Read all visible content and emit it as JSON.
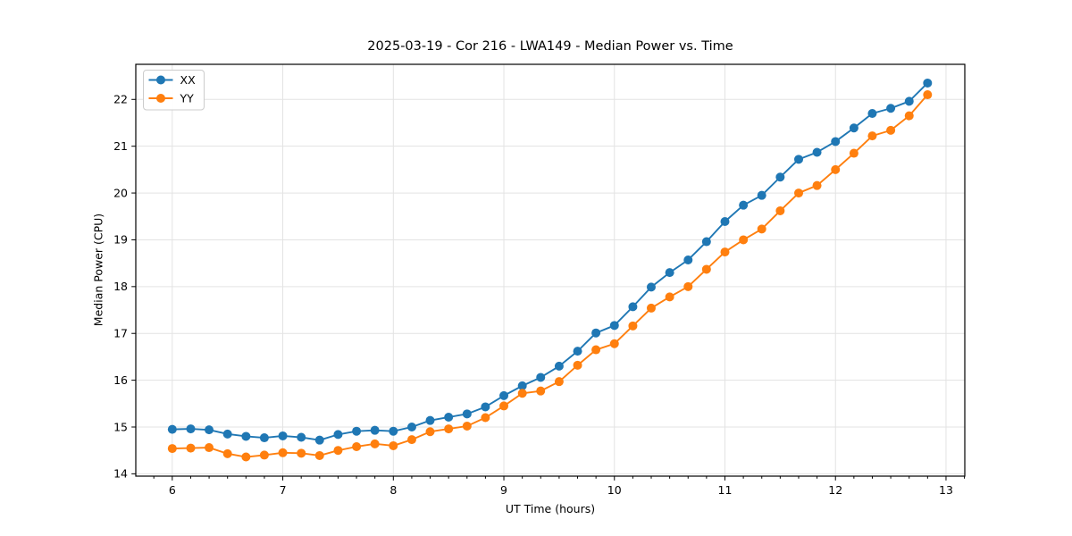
{
  "chart_data": {
    "type": "line",
    "title": "2025-03-19 - Cor 216 - LWA149 - Median Power vs. Time",
    "xlabel": "UT Time (hours)",
    "ylabel": "Median Power (CPU)",
    "xlim": [
      5.67,
      13.17
    ],
    "ylim": [
      13.95,
      22.75
    ],
    "x_ticks": [
      6,
      7,
      8,
      9,
      10,
      11,
      12,
      13
    ],
    "y_ticks": [
      14,
      15,
      16,
      17,
      18,
      19,
      20,
      21,
      22
    ],
    "x_minor_interval_hours": 0.16667,
    "grid": true,
    "legend_position": "upper left",
    "background_color": "#ffffff",
    "grid_color": "#e3e3e3",
    "spine_color": "#000000",
    "text_color": "#000000",
    "x": [
      6.0,
      6.167,
      6.333,
      6.5,
      6.667,
      6.833,
      7.0,
      7.167,
      7.333,
      7.5,
      7.667,
      7.833,
      8.0,
      8.167,
      8.333,
      8.5,
      8.667,
      8.833,
      9.0,
      9.167,
      9.333,
      9.5,
      9.667,
      9.833,
      10.0,
      10.167,
      10.333,
      10.5,
      10.667,
      10.833,
      11.0,
      11.167,
      11.333,
      11.5,
      11.667,
      11.833,
      12.0,
      12.167,
      12.333,
      12.5,
      12.667,
      12.833
    ],
    "series": [
      {
        "name": "XX",
        "color": "#1f77b4",
        "values": [
          14.95,
          14.96,
          14.94,
          14.85,
          14.8,
          14.77,
          14.81,
          14.78,
          14.72,
          14.84,
          14.91,
          14.93,
          14.91,
          15.0,
          15.14,
          15.21,
          15.28,
          15.43,
          15.67,
          15.88,
          16.06,
          16.3,
          16.62,
          17.01,
          17.17,
          17.57,
          17.99,
          18.3,
          18.57,
          18.96,
          19.39,
          19.74,
          19.95,
          20.34,
          20.72,
          20.87,
          21.1,
          21.39,
          21.7,
          21.81,
          21.96,
          22.35
        ]
      },
      {
        "name": "YY",
        "color": "#ff7f0e",
        "values": [
          14.54,
          14.55,
          14.56,
          14.43,
          14.36,
          14.4,
          14.45,
          14.44,
          14.39,
          14.5,
          14.58,
          14.64,
          14.6,
          14.73,
          14.9,
          14.96,
          15.02,
          15.2,
          15.45,
          15.72,
          15.77,
          15.97,
          16.32,
          16.65,
          16.78,
          17.16,
          17.54,
          17.78,
          18.0,
          18.37,
          18.74,
          19.0,
          19.23,
          19.62,
          20.0,
          20.16,
          20.5,
          20.85,
          21.22,
          21.34,
          21.65,
          22.1
        ]
      }
    ]
  }
}
